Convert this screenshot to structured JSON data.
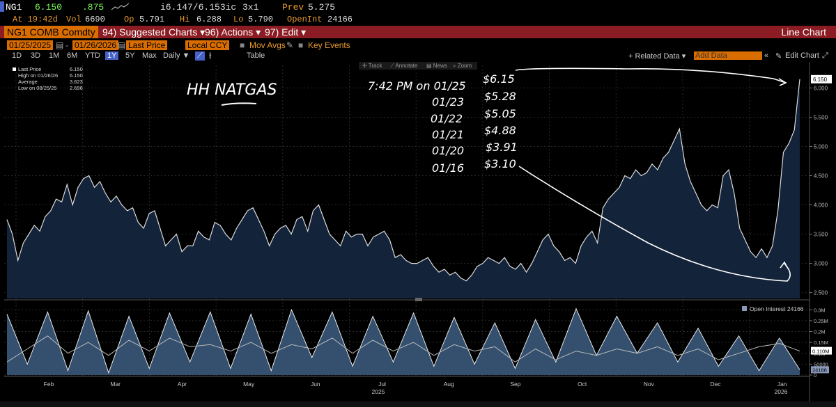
{
  "quote": {
    "symbol": "NG1",
    "last": "6.150",
    "change": ".875",
    "bid_ask": "i6.147/6.153ic",
    "size": "3x1",
    "prev_label": "Prev",
    "prev": "5.275",
    "at_time": "At 19:42d",
    "vol_label": "Vol",
    "vol": "6690",
    "open_label": "Op",
    "open": "5.791",
    "high_label": "Hi",
    "high": "6.288",
    "low_label": "Lo",
    "low": "5.790",
    "oi_label": "OpenInt",
    "oi": "24166"
  },
  "toolbar": {
    "ticker": "NG1 COMB Comdty",
    "suggested": "94) Suggested Charts",
    "actions": "96) Actions",
    "edit": "97) Edit",
    "chart_type": "Line Chart"
  },
  "dates": {
    "start": "01/25/2025",
    "end": "01/26/2026",
    "field": "Last Price",
    "currency": "Local CCY",
    "mov_avgs": "Mov Avgs",
    "key_events": "Key Events"
  },
  "ranges": [
    "1D",
    "3D",
    "1M",
    "6M",
    "YTD",
    "1Y",
    "5Y",
    "Max"
  ],
  "selected_range": "1Y",
  "ranges_extra": {
    "daily": "Daily",
    "table": "Table",
    "related": "+ Related Data",
    "add_data": "Add Data",
    "edit_chart": "Edit Chart"
  },
  "chart_tools": {
    "track": "Track",
    "annotate": "Annotate",
    "news": "News",
    "zoom": "Zoom"
  },
  "legend": {
    "last_label": "Last Price",
    "last": "6.150",
    "high_label": "High on 01/26/26",
    "high": "6.150",
    "avg_label": "Average",
    "avg": "3.623",
    "low_label": "Low on 08/25/25",
    "low": "2.696"
  },
  "oi_legend": {
    "label": "Open Interest",
    "value": "24166"
  },
  "annotations": {
    "title": "HH NATGAS",
    "time": "7:42 PM on 01/25",
    "rows": [
      {
        "date": "",
        "price": "$6.15"
      },
      {
        "date": "01/23",
        "price": "$5.28"
      },
      {
        "date": "01/22",
        "price": "$5.05"
      },
      {
        "date": "01/21",
        "price": "$4.88"
      },
      {
        "date": "01/20",
        "price": "$3.91"
      },
      {
        "date": "01/16",
        "price": "$3.10"
      }
    ]
  },
  "chart_data": {
    "type": "area",
    "price_axis": {
      "ticks": [
        "6.000",
        "5.500",
        "5.000",
        "4.500",
        "4.000",
        "3.500",
        "3.000",
        "2.500"
      ],
      "current_label": "6.150",
      "ylim": [
        2.4,
        6.35
      ]
    },
    "oi_axis": {
      "ticks": [
        "0.3M",
        "0.25M",
        "0.2M",
        "0.15M",
        "0.1M",
        "50000",
        "0"
      ],
      "current_label": "0.110M",
      "oi_current": "24166",
      "ylim": [
        0,
        320000
      ]
    },
    "months": [
      "Feb",
      "Mar",
      "Apr",
      "May",
      "Jun",
      "Jul",
      "Aug",
      "Sep",
      "Oct",
      "Nov",
      "Dec",
      "Jan"
    ],
    "years": [
      "2025",
      "2026"
    ],
    "series": [
      {
        "name": "Last Price",
        "color": "#dcdcdc",
        "fill": "#13233a",
        "values": [
          3.75,
          3.5,
          3.05,
          3.35,
          3.5,
          3.65,
          3.55,
          3.8,
          3.9,
          4.1,
          4.05,
          4.35,
          4.0,
          4.3,
          4.45,
          4.5,
          4.3,
          4.4,
          4.2,
          4.05,
          4.15,
          4.0,
          3.9,
          3.95,
          3.7,
          3.6,
          3.85,
          3.9,
          3.6,
          3.3,
          3.4,
          3.5,
          3.2,
          3.3,
          3.3,
          3.55,
          3.45,
          3.4,
          3.7,
          3.65,
          3.5,
          3.4,
          3.6,
          3.75,
          3.9,
          3.95,
          3.75,
          3.55,
          3.3,
          3.5,
          3.6,
          3.65,
          3.5,
          3.75,
          3.8,
          3.55,
          3.9,
          4.0,
          3.75,
          3.5,
          3.4,
          3.3,
          3.55,
          3.45,
          3.5,
          3.5,
          3.3,
          3.45,
          3.5,
          3.55,
          3.4,
          3.1,
          3.15,
          3.05,
          3.0,
          3.0,
          3.05,
          3.1,
          2.95,
          2.85,
          2.9,
          2.8,
          2.85,
          2.75,
          2.7,
          2.8,
          2.95,
          3.0,
          3.1,
          3.05,
          3.0,
          3.1,
          2.95,
          2.9,
          3.0,
          2.85,
          3.0,
          3.2,
          3.4,
          3.5,
          3.3,
          3.2,
          3.05,
          3.1,
          3.0,
          3.3,
          3.45,
          3.55,
          3.35,
          3.95,
          4.1,
          4.2,
          4.3,
          4.5,
          4.45,
          4.6,
          4.5,
          4.55,
          4.7,
          4.6,
          4.8,
          4.9,
          5.1,
          5.3,
          4.7,
          4.4,
          4.2,
          4.0,
          3.9,
          4.0,
          3.95,
          4.5,
          4.6,
          4.2,
          3.6,
          3.4,
          3.2,
          3.1,
          3.25,
          3.1,
          3.3,
          3.9,
          4.9,
          5.05,
          5.28,
          6.15
        ]
      },
      {
        "name": "Open Interest",
        "color": "#e8e8e8",
        "fill": "#34506e",
        "values": [
          280000,
          50000,
          290000,
          20000,
          295000,
          10000,
          270000,
          30000,
          285000,
          60000,
          290000,
          30000,
          280000,
          20000,
          300000,
          80000,
          290000,
          40000,
          270000,
          60000,
          285000,
          40000,
          265000,
          50000,
          240000,
          30000,
          255000,
          60000,
          305000,
          90000,
          270000,
          100000,
          240000,
          60000,
          215000,
          40000,
          180000,
          20000,
          170000,
          24166
        ]
      },
      {
        "name": "Open Interest Line",
        "color": "#bbbbbb",
        "values": [
          60000,
          120000,
          180000,
          100000,
          150000,
          90000,
          160000,
          110000,
          170000,
          130000,
          140000,
          110000,
          150000,
          100000,
          140000,
          120000,
          170000,
          100000,
          160000,
          110000,
          150000,
          90000,
          140000,
          110000,
          130000,
          60000,
          120000,
          70000,
          110000,
          90000,
          120000,
          100000,
          130000,
          90000,
          120000,
          70000,
          100000,
          130000,
          145000,
          110000
        ]
      }
    ]
  }
}
